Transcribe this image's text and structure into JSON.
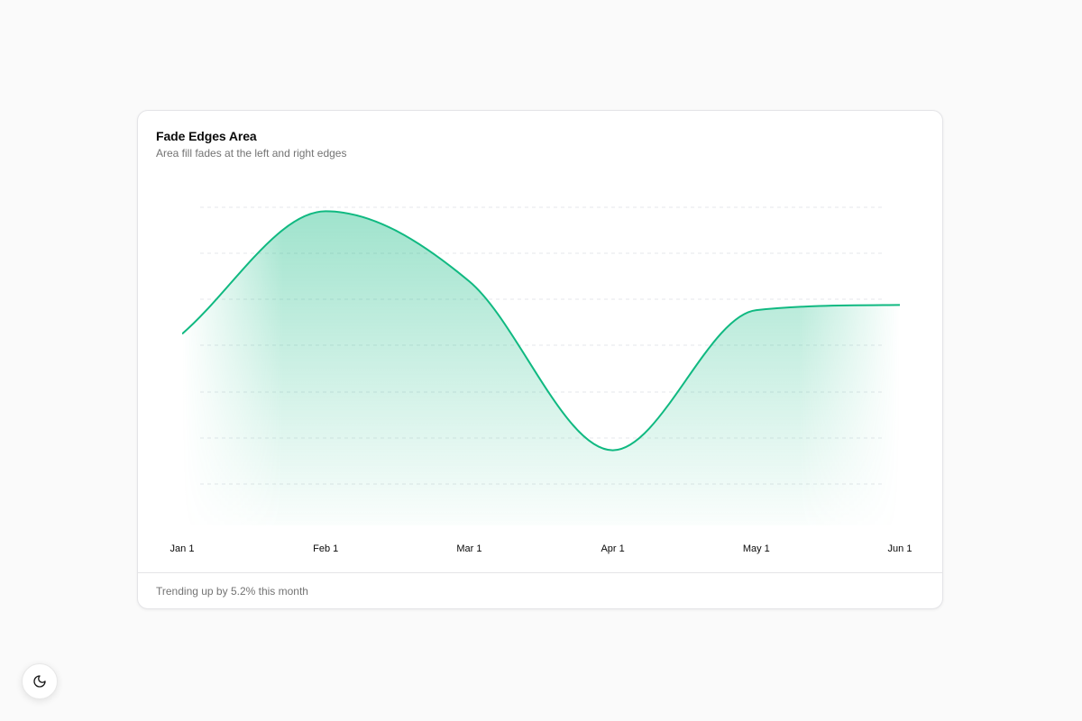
{
  "card": {
    "title": "Fade Edges Area",
    "subtitle": "Area fill fades at the left and right edges",
    "footer": "Trending up by 5.2% this month"
  },
  "theme_toggle": {
    "icon": "moon-icon"
  },
  "colors": {
    "line": "#10b981",
    "fill": "#10b981",
    "grid": "#e5e7eb",
    "text": "#0a0a0a",
    "muted": "#737373"
  },
  "chart_data": {
    "type": "area",
    "title": "Fade Edges Area",
    "subtitle": "Area fill fades at the left and right edges",
    "xlabel": "",
    "ylabel": "",
    "x": [
      "Jan 1",
      "Feb 1",
      "Mar 1",
      "Apr 1",
      "May 1",
      "Jun 1"
    ],
    "series": [
      {
        "values": [
          186,
          305,
          237,
          73,
          209,
          214
        ]
      }
    ],
    "ylim": [
      0,
      350
    ],
    "grid": true,
    "legend": "none"
  }
}
